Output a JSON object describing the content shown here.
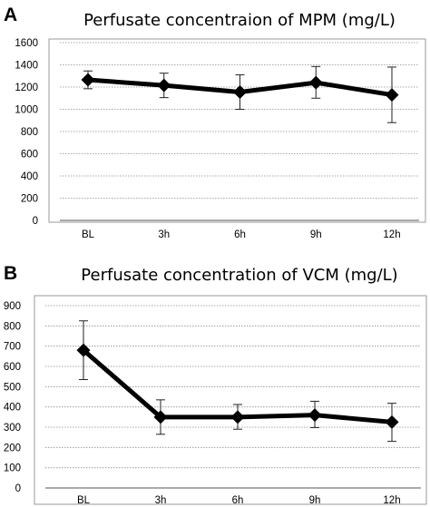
{
  "chart_data": [
    {
      "panel": "A",
      "type": "line",
      "title": "Perfusate concentraion of MPM (mg/L)",
      "categories": [
        "BL",
        "3h",
        "6h",
        "9h",
        "12h"
      ],
      "series": [
        {
          "values": [
            1265,
            1215,
            1155,
            1240,
            1130
          ],
          "err_low": [
            1185,
            1105,
            1000,
            1100,
            880
          ],
          "err_high": [
            1345,
            1325,
            1310,
            1385,
            1380
          ]
        }
      ],
      "ylim": [
        0,
        1600
      ],
      "yticks": [
        0,
        200,
        400,
        600,
        800,
        1000,
        1200,
        1400,
        1600
      ],
      "grid": true
    },
    {
      "panel": "B",
      "type": "line",
      "title": "Perfusate concentration of VCM (mg/L)",
      "categories": [
        "BL",
        "3h",
        "6h",
        "9h",
        "12h"
      ],
      "series": [
        {
          "values": [
            680,
            350,
            350,
            360,
            325
          ],
          "err_low": [
            535,
            265,
            290,
            298,
            230
          ],
          "err_high": [
            825,
            435,
            412,
            428,
            418
          ]
        }
      ],
      "ylim": [
        0,
        900
      ],
      "yticks": [
        0,
        100,
        200,
        300,
        400,
        500,
        600,
        700,
        800,
        900
      ],
      "grid": true
    }
  ],
  "colors": {
    "line": "#000000",
    "grid": "#8c8c8c",
    "frame": "#9a9a9a"
  }
}
